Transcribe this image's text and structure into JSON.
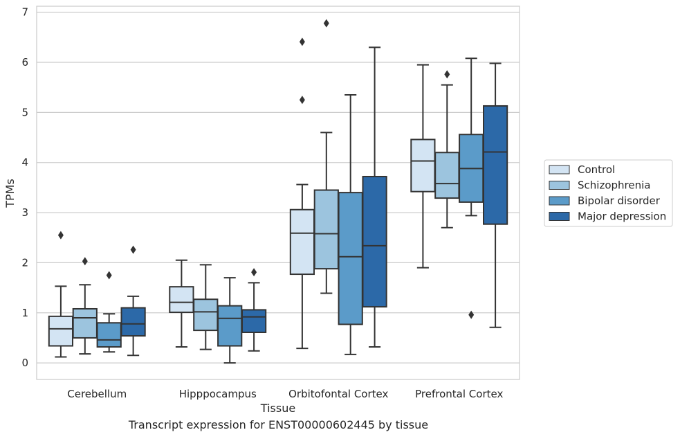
{
  "caption": "Transcript expression for ENST00000602445 by tissue",
  "chart_data": {
    "type": "box",
    "title": "",
    "xlabel": "Tissue",
    "ylabel": "TPMs",
    "ylim": [
      -0.33,
      7.12
    ],
    "yticks": [
      0,
      1,
      2,
      3,
      4,
      5,
      6,
      7
    ],
    "grid": "horizontal",
    "legend_position": "right",
    "categories": [
      "Cerebellum",
      "Hipppocampus",
      "Orbitofontal Cortex",
      "Prefrontal Cortex"
    ],
    "series": [
      {
        "name": "Control",
        "color": "#d3e4f3",
        "boxes": [
          {
            "whislo": 0.12,
            "q1": 0.34,
            "med": 0.68,
            "q3": 0.93,
            "whishi": 1.53,
            "fliers": [
              2.55
            ]
          },
          {
            "whislo": 0.32,
            "q1": 1.01,
            "med": 1.21,
            "q3": 1.52,
            "whishi": 2.05,
            "fliers": []
          },
          {
            "whislo": 0.29,
            "q1": 1.77,
            "med": 2.59,
            "q3": 3.06,
            "whishi": 3.56,
            "fliers": [
              5.25,
              6.41
            ]
          },
          {
            "whislo": 1.9,
            "q1": 3.42,
            "med": 4.03,
            "q3": 4.46,
            "whishi": 5.95,
            "fliers": []
          }
        ]
      },
      {
        "name": "Schizophrenia",
        "color": "#9cc4de",
        "boxes": [
          {
            "whislo": 0.18,
            "q1": 0.5,
            "med": 0.9,
            "q3": 1.08,
            "whishi": 1.56,
            "fliers": [
              2.03
            ]
          },
          {
            "whislo": 0.27,
            "q1": 0.65,
            "med": 1.02,
            "q3": 1.27,
            "whishi": 1.96,
            "fliers": []
          },
          {
            "whislo": 1.39,
            "q1": 1.88,
            "med": 2.58,
            "q3": 3.45,
            "whishi": 4.6,
            "fliers": [
              6.78
            ]
          },
          {
            "whislo": 2.7,
            "q1": 3.29,
            "med": 3.58,
            "q3": 4.2,
            "whishi": 5.55,
            "fliers": [
              5.76
            ]
          }
        ]
      },
      {
        "name": "Bipolar disorder",
        "color": "#5b9bc9",
        "boxes": [
          {
            "whislo": 0.22,
            "q1": 0.32,
            "med": 0.46,
            "q3": 0.8,
            "whishi": 0.98,
            "fliers": [
              1.75
            ]
          },
          {
            "whislo": 0.0,
            "q1": 0.34,
            "med": 0.89,
            "q3": 1.14,
            "whishi": 1.7,
            "fliers": []
          },
          {
            "whislo": 0.17,
            "q1": 0.77,
            "med": 2.12,
            "q3": 3.4,
            "whishi": 5.35,
            "fliers": []
          },
          {
            "whislo": 2.94,
            "q1": 3.21,
            "med": 3.88,
            "q3": 4.56,
            "whishi": 6.08,
            "fliers": [
              0.96
            ]
          }
        ]
      },
      {
        "name": "Major depression",
        "color": "#2c69a8",
        "boxes": [
          {
            "whislo": 0.15,
            "q1": 0.54,
            "med": 0.78,
            "q3": 1.1,
            "whishi": 1.33,
            "fliers": [
              2.26
            ]
          },
          {
            "whislo": 0.24,
            "q1": 0.61,
            "med": 0.92,
            "q3": 1.06,
            "whishi": 1.6,
            "fliers": [
              1.81
            ]
          },
          {
            "whislo": 0.32,
            "q1": 1.12,
            "med": 2.34,
            "q3": 3.72,
            "whishi": 6.3,
            "fliers": []
          },
          {
            "whislo": 0.71,
            "q1": 2.77,
            "med": 4.21,
            "q3": 5.13,
            "whishi": 5.98,
            "fliers": []
          }
        ]
      }
    ]
  }
}
